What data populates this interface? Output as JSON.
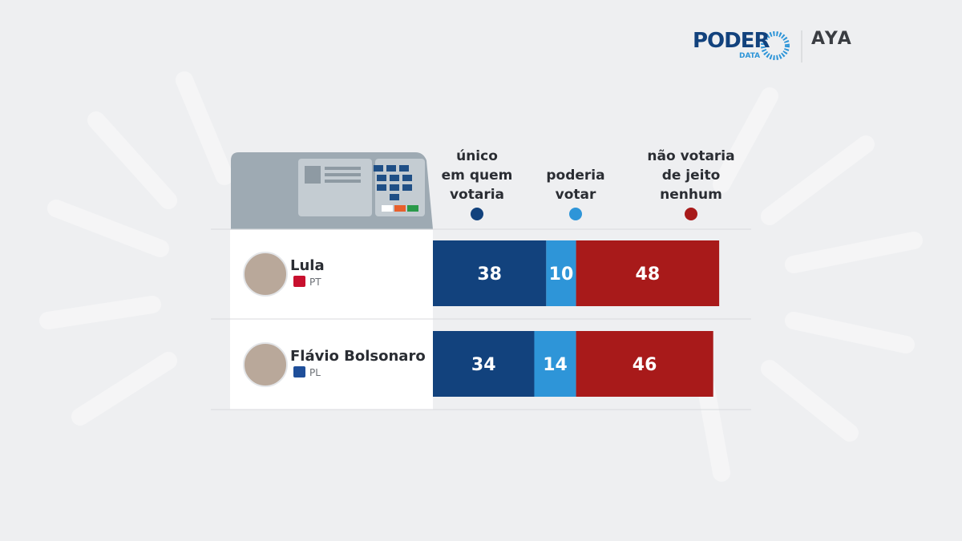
{
  "brand": {
    "name": "PODER",
    "sub": "DATA",
    "partner": "AYA"
  },
  "chart_data": {
    "type": "stacked-bar",
    "categories": [
      "Lula",
      "Flávio Bolsonaro"
    ],
    "parties": [
      "PT",
      "PL"
    ],
    "series": [
      {
        "name": "único\nem quem\nvotaria",
        "color": "#12427d",
        "values": [
          38,
          34
        ]
      },
      {
        "name": "poderia\nvotar",
        "color": "#2e95d8",
        "values": [
          10,
          14
        ]
      },
      {
        "name": "não votaria\nde jeito\nnenhum",
        "color": "#a81a1a",
        "values": [
          48,
          46
        ]
      }
    ]
  }
}
